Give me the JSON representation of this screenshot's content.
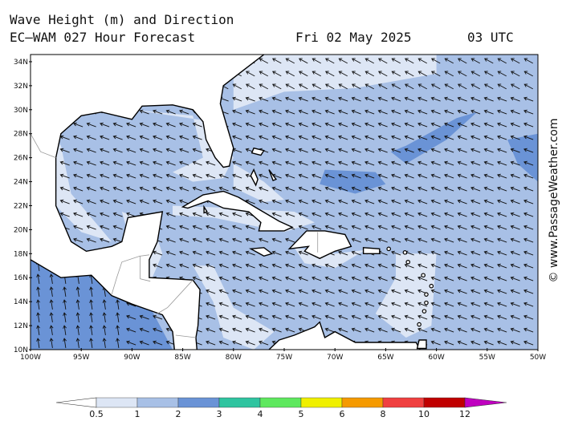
{
  "header": {
    "title": "Wave Height (m) and Direction",
    "model": "EC–WAM 027 Hour Forecast",
    "date": "Fri 02 May 2025",
    "time": "03 UTC"
  },
  "map": {
    "lat_labels": [
      "10N",
      "12N",
      "14N",
      "16N",
      "18N",
      "20N",
      "22N",
      "24N",
      "26N",
      "28N",
      "30N",
      "32N",
      "34N"
    ],
    "lon_labels": [
      "100W",
      "95W",
      "90W",
      "85W",
      "80W",
      "75W",
      "70W",
      "65W",
      "60W",
      "55W",
      "50W"
    ]
  },
  "legend": {
    "levels": [
      0.5,
      1,
      2,
      3,
      4,
      5,
      6,
      8,
      10,
      12
    ]
  },
  "watermark": "© www.PassageWeather.com"
}
